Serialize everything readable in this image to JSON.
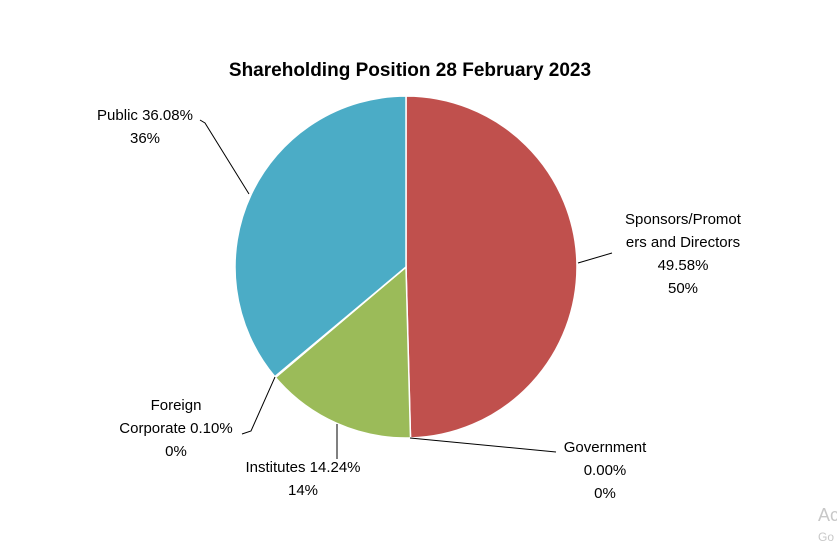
{
  "chart_data": {
    "type": "pie",
    "title": "Shareholding Position 28 February 2023",
    "series": [
      {
        "values": [
          49.58,
          0.0,
          14.24,
          0.1,
          36.08
        ],
        "categories": [
          "Sponsors/Promoters and Directors",
          "Government",
          "Institutes",
          "Foreign Corporate",
          "Public"
        ]
      }
    ],
    "slices": [
      {
        "label": "Sponsors/Promoters and Directors",
        "value": 49.58,
        "color": "#c0504d",
        "label_lines": [
          "Sponsors/Promot",
          "ers and Directors",
          "49.58%",
          "50%"
        ]
      },
      {
        "label": "Government",
        "value": 0.0,
        "color": "#8064a2",
        "label_lines": [
          "Government",
          "0.00%",
          "0%"
        ]
      },
      {
        "label": "Institutes",
        "value": 14.24,
        "color": "#9bbb59",
        "label_lines": [
          "Institutes 14.24%",
          "14%"
        ]
      },
      {
        "label": "Foreign Corporate",
        "value": 0.1,
        "color": "#f79646",
        "label_lines": [
          "Foreign",
          "Corporate 0.10%",
          "0%"
        ]
      },
      {
        "label": "Public",
        "value": 36.08,
        "color": "#4bacc6",
        "label_lines": [
          "Public 36.08%",
          "36%"
        ]
      }
    ],
    "legend": "none"
  },
  "watermark": {
    "line1": "Ac",
    "line2": "Go"
  }
}
